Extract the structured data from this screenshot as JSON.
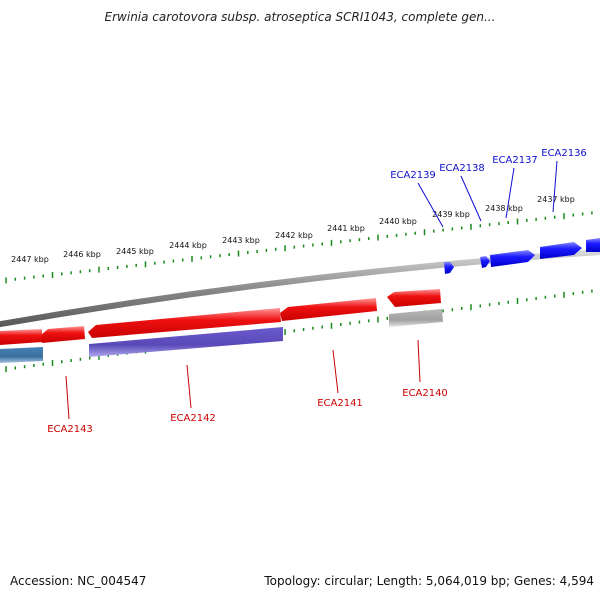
{
  "title": "Erwinia carotovora subsp. atroseptica SCRI1043, complete gen...",
  "footer": {
    "accession": "Accession: NC_004547",
    "stats": "Topology: circular; Length: 5,064,019 bp; Genes: 4,594"
  },
  "colors": {
    "forward_gene": "#1a1aff",
    "reverse_gene": "#ee1111",
    "rna_gene": "#6a5acd",
    "pseudo_gene": "#aaaaaa",
    "other_gene": "#4682b4",
    "backbone": "#888888",
    "tick": "#1a8a1a"
  },
  "ticks": [
    {
      "label": "2447 kbp"
    },
    {
      "label": "2446 kbp"
    },
    {
      "label": "2445 kbp"
    },
    {
      "label": "2444 kbp"
    },
    {
      "label": "2443 kbp"
    },
    {
      "label": "2442 kbp"
    },
    {
      "label": "2441 kbp"
    },
    {
      "label": "2440 kbp"
    },
    {
      "label": "2439 kbp"
    },
    {
      "label": "2438 kbp"
    },
    {
      "label": "2437 kbp"
    }
  ],
  "genes": [
    {
      "name": "ECA2136",
      "strand": "forward"
    },
    {
      "name": "ECA2137",
      "strand": "forward"
    },
    {
      "name": "ECA2138",
      "strand": "forward"
    },
    {
      "name": "ECA2139",
      "strand": "forward"
    },
    {
      "name": "ECA2140",
      "strand": "reverse"
    },
    {
      "name": "ECA2141",
      "strand": "reverse"
    },
    {
      "name": "ECA2142",
      "strand": "reverse"
    },
    {
      "name": "ECA2143",
      "strand": "reverse"
    }
  ]
}
